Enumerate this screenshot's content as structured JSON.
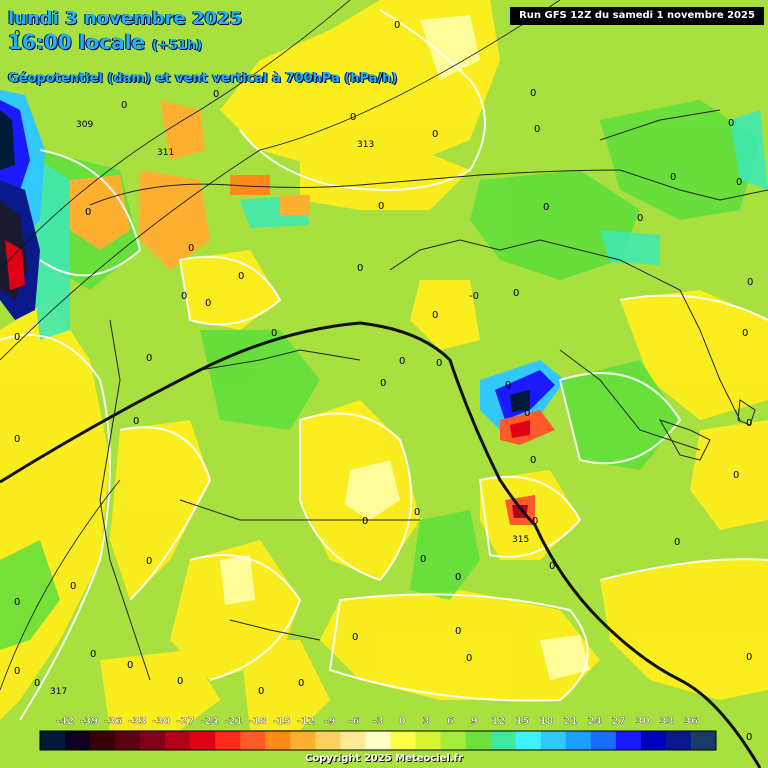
{
  "header": {
    "date_line": "lundi 3 novembre 2025",
    "time_line": "16:00 locale",
    "time_offset": "(+51h)",
    "field_line": "Géopotentiel (dam) et vent vertical à 700hPa (hPa/h)",
    "run_label": "Run GFS 12Z du samedi 1 novembre 2025"
  },
  "footer": {
    "copyright": "Copyright 2025 Meteociel.fr"
  },
  "colorbar": {
    "ticks": [
      "-42",
      "-39",
      "-36",
      "-33",
      "-30",
      "-27",
      "-24",
      "-21",
      "-18",
      "-15",
      "-12",
      "-9",
      "-6",
      "-3",
      "0",
      "3",
      "6",
      "9",
      "12",
      "15",
      "18",
      "21",
      "24",
      "27",
      "30",
      "33",
      "36"
    ],
    "colors": [
      "#001a3a",
      "#100020",
      "#3a0008",
      "#5c0010",
      "#800016",
      "#b0001a",
      "#e00016",
      "#ff2a1a",
      "#ff5a2a",
      "#ff8a1a",
      "#ffb030",
      "#ffd060",
      "#ffe896",
      "#ffffc8",
      "#ffff46",
      "#d6f530",
      "#a6ec3a",
      "#6ee040",
      "#40e8a0",
      "#40f0ff",
      "#30c8ff",
      "#1aa0ff",
      "#1a6cff",
      "#1a1aff",
      "#0000c0",
      "#0a1a8c",
      "#1a3a6a"
    ]
  },
  "contour_labels": [
    "309",
    "311",
    "313",
    "315",
    "317"
  ],
  "value_labels": [
    "0",
    "-0"
  ]
}
